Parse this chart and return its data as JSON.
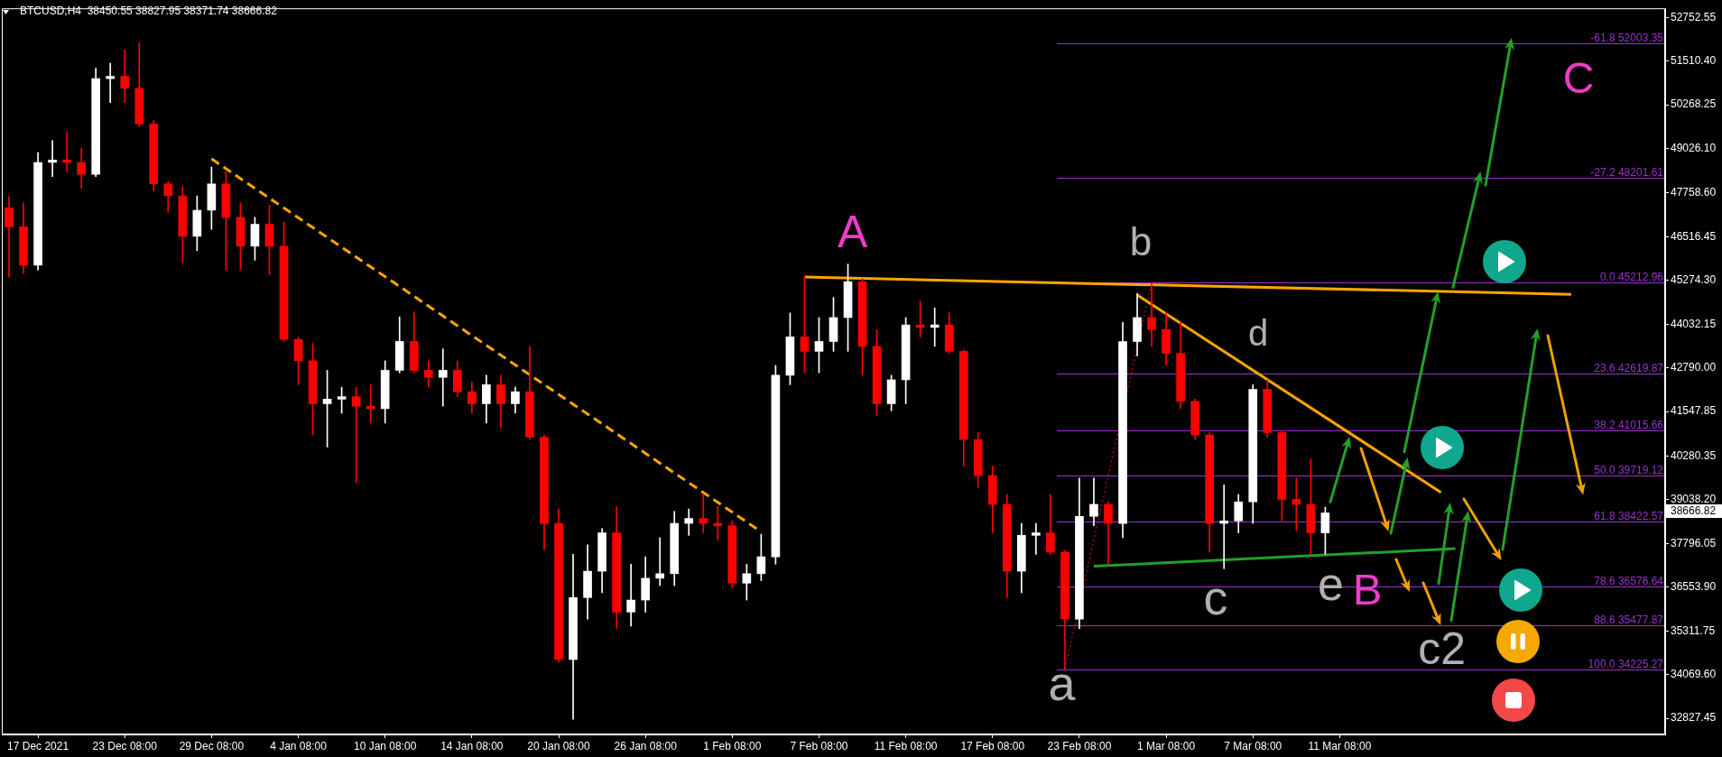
{
  "chart_data": {
    "type": "candlestick",
    "title": "BTCUSD,H4  38450.55 38827.95 38371.74 38666.82",
    "categories": [
      null,
      null,
      "17 Dec 2021",
      null,
      null,
      null,
      null,
      null,
      "23 Dec 08:00",
      null,
      null,
      null,
      null,
      null,
      "29 Dec 08:00",
      null,
      null,
      null,
      null,
      null,
      "4 Jan 08:00",
      null,
      null,
      null,
      null,
      null,
      "10 Jan 08:00",
      null,
      null,
      null,
      null,
      null,
      "14 Jan 08:00",
      null,
      null,
      null,
      null,
      null,
      "20 Jan 08:00",
      null,
      null,
      null,
      null,
      null,
      "26 Jan 08:00",
      null,
      null,
      null,
      null,
      null,
      "1 Feb 08:00",
      null,
      null,
      null,
      null,
      null,
      "7 Feb 08:00",
      null,
      null,
      null,
      null,
      null,
      "11 Feb 08:00",
      null,
      null,
      null,
      null,
      null,
      "17 Feb 08:00",
      null,
      null,
      null,
      null,
      null,
      "23 Feb 08:00",
      null,
      null,
      null,
      null,
      null,
      "1 Mar 08:00",
      null,
      null,
      null,
      null,
      null,
      "7 Mar 08:00",
      null,
      null,
      null,
      null,
      null,
      "11 Mar 08:00",
      null,
      null,
      null,
      null,
      null,
      null,
      null,
      null,
      null,
      null,
      null,
      null,
      null,
      null,
      null,
      null,
      null,
      null,
      null,
      null,
      null,
      null
    ],
    "ohlc": [
      [
        47340,
        47660,
        45370,
        46800
      ],
      [
        46800,
        47480,
        45470,
        45710
      ],
      [
        45710,
        48910,
        45570,
        48630
      ],
      [
        48630,
        49250,
        48230,
        48700
      ],
      [
        48700,
        49490,
        48360,
        48630
      ],
      [
        48630,
        49040,
        47890,
        48290
      ],
      [
        48290,
        51310,
        48230,
        51010
      ],
      [
        51010,
        51450,
        50330,
        51080
      ],
      [
        51080,
        51830,
        50330,
        50740
      ],
      [
        50740,
        52030,
        49650,
        49720
      ],
      [
        49720,
        49820,
        47820,
        48020
      ],
      [
        48020,
        48090,
        47210,
        47680
      ],
      [
        47680,
        47950,
        45780,
        46530
      ],
      [
        46530,
        47680,
        46120,
        47270
      ],
      [
        47270,
        48500,
        46730,
        48020
      ],
      [
        48020,
        48360,
        45570,
        47070
      ],
      [
        47070,
        47480,
        45570,
        46250
      ],
      [
        46250,
        47070,
        45850,
        46870
      ],
      [
        46870,
        47410,
        45440,
        46250
      ],
      [
        46250,
        46930,
        43540,
        43600
      ],
      [
        43600,
        43670,
        42310,
        42990
      ],
      [
        42990,
        43490,
        40880,
        41770
      ],
      [
        41770,
        42720,
        40540,
        41900
      ],
      [
        41900,
        42240,
        41500,
        41970
      ],
      [
        41970,
        42240,
        39520,
        41700
      ],
      [
        41700,
        42310,
        41220,
        41630
      ],
      [
        41630,
        42990,
        41220,
        42720
      ],
      [
        42720,
        44240,
        42650,
        43540
      ],
      [
        43540,
        44380,
        42650,
        42720
      ],
      [
        42720,
        42990,
        42240,
        42520
      ],
      [
        42520,
        43330,
        41700,
        42720
      ],
      [
        42720,
        42990,
        41970,
        42110
      ],
      [
        42110,
        42380,
        41500,
        41770
      ],
      [
        41770,
        42580,
        41220,
        42310
      ],
      [
        42310,
        42580,
        41090,
        41770
      ],
      [
        41770,
        42240,
        41500,
        42110
      ],
      [
        42110,
        43400,
        40750,
        40820
      ],
      [
        40820,
        40890,
        37620,
        38370
      ],
      [
        38370,
        38780,
        34430,
        34500
      ],
      [
        34500,
        37490,
        32800,
        36260
      ],
      [
        36260,
        37760,
        35650,
        37010
      ],
      [
        37010,
        38230,
        36400,
        38100
      ],
      [
        38100,
        38850,
        35380,
        35850
      ],
      [
        35850,
        37210,
        35450,
        36190
      ],
      [
        36190,
        37420,
        35850,
        36810
      ],
      [
        36810,
        37960,
        36600,
        36940
      ],
      [
        36940,
        38710,
        36600,
        38370
      ],
      [
        38370,
        38780,
        38030,
        38510
      ],
      [
        38510,
        39190,
        38100,
        38370
      ],
      [
        38370,
        38850,
        37890,
        38300
      ],
      [
        38300,
        38440,
        36530,
        36670
      ],
      [
        36670,
        37210,
        36190,
        36940
      ],
      [
        36940,
        38060,
        36740,
        37420
      ],
      [
        37420,
        42860,
        37210,
        42580
      ],
      [
        42580,
        44350,
        42310,
        43670
      ],
      [
        43670,
        45400,
        42650,
        43260
      ],
      [
        43260,
        44220,
        42650,
        43540
      ],
      [
        43540,
        44790,
        43260,
        44220
      ],
      [
        44220,
        45740,
        43260,
        45240
      ],
      [
        45240,
        45330,
        42580,
        43400
      ],
      [
        43400,
        43880,
        41430,
        41770
      ],
      [
        41770,
        42580,
        41570,
        42450
      ],
      [
        42450,
        44220,
        41770,
        44010
      ],
      [
        44010,
        44690,
        43670,
        43940
      ],
      [
        43940,
        44490,
        43400,
        44010
      ],
      [
        44010,
        44350,
        43200,
        43260
      ],
      [
        43260,
        43300,
        40000,
        40750
      ],
      [
        40750,
        40950,
        39390,
        39730
      ],
      [
        39730,
        40000,
        38100,
        38910
      ],
      [
        38910,
        39190,
        36260,
        37010
      ],
      [
        37010,
        38370,
        36400,
        38030
      ],
      [
        38030,
        38370,
        37490,
        38100
      ],
      [
        38100,
        39190,
        37490,
        37550
      ],
      [
        37550,
        37600,
        34230,
        35650
      ],
      [
        35650,
        39660,
        35380,
        38570
      ],
      [
        38570,
        39660,
        38300,
        38910
      ],
      [
        38910,
        38980,
        37210,
        38370
      ],
      [
        38370,
        44080,
        37960,
        43540
      ],
      [
        43540,
        44900,
        43130,
        44220
      ],
      [
        44220,
        45210,
        43400,
        43880
      ],
      [
        43880,
        44350,
        42860,
        43200
      ],
      [
        43200,
        44080,
        41630,
        41840
      ],
      [
        41840,
        41900,
        40750,
        40880
      ],
      [
        40880,
        40950,
        37550,
        38370
      ],
      [
        38370,
        39460,
        37080,
        38440
      ],
      [
        38440,
        39190,
        38100,
        38980
      ],
      [
        38980,
        42310,
        38370,
        42180
      ],
      [
        42180,
        42450,
        40820,
        40950
      ],
      [
        40950,
        41000,
        38440,
        39050
      ],
      [
        39050,
        39660,
        38170,
        38910
      ],
      [
        38910,
        40200,
        37490,
        38100
      ],
      [
        38100,
        38830,
        37490,
        38666.82
      ],
      null,
      null,
      null,
      null,
      null,
      null,
      null,
      null,
      null,
      null,
      null,
      null,
      null,
      null,
      null,
      null,
      null,
      null,
      null,
      null,
      null,
      null,
      null
    ],
    "colors": [
      "#ff0000",
      "#ff0000",
      "#ffffff",
      "#ffffff",
      "#ff0000",
      "#ff0000",
      "#ffffff",
      "#ffffff",
      "#ff0000",
      "#ff0000",
      "#ff0000",
      "#ff0000",
      "#ff0000",
      "#ffffff",
      "#ffffff",
      "#ff0000",
      "#ff0000",
      "#ffffff",
      "#ff0000",
      "#ff0000",
      "#ff0000",
      "#ff0000",
      "#ffffff",
      "#ffffff",
      "#ff0000",
      "#ff0000",
      "#ffffff",
      "#ffffff",
      "#ff0000",
      "#ff0000",
      "#ffffff",
      "#ff0000",
      "#ff0000",
      "#ffffff",
      "#ff0000",
      "#ffffff",
      "#ff0000",
      "#ff0000",
      "#ff0000",
      "#ffffff",
      "#ffffff",
      "#ffffff",
      "#ff0000",
      "#ffffff",
      "#ffffff",
      "#ffffff",
      "#ffffff",
      "#ffffff",
      "#ff0000",
      "#ff0000",
      "#ff0000",
      "#ffffff",
      "#ffffff",
      "#ffffff",
      "#ffffff",
      "#ff0000",
      "#ffffff",
      "#ffffff",
      "#ffffff",
      "#ff0000",
      "#ff0000",
      "#ffffff",
      "#ffffff",
      "#ff0000",
      "#ffffff",
      "#ff0000",
      "#ff0000",
      "#ff0000",
      "#ff0000",
      "#ff0000",
      "#ffffff",
      "#ffffff",
      "#ff0000",
      "#ff0000",
      "#ffffff",
      "#ffffff",
      "#ff0000",
      "#ffffff",
      "#ffffff",
      "#ff0000",
      "#ff0000",
      "#ff0000",
      "#ff0000",
      "#ff0000",
      "#ffffff",
      "#ffffff",
      "#ffffff",
      "#ff0000",
      "#ff0000",
      "#ff0000",
      "#ff0000",
      "#ffffff",
      null,
      null,
      null,
      null,
      null,
      null,
      null,
      null,
      null,
      null,
      null,
      null,
      null,
      null,
      null,
      null,
      null,
      null,
      null,
      null,
      null,
      null,
      null
    ],
    "series": [
      {
        "type": "line",
        "color": "#ffa500",
        "line_style": "dashed",
        "values": [
          null,
          null,
          null,
          null,
          null,
          null,
          null,
          null,
          null,
          null,
          null,
          null,
          null,
          null,
          48730,
          null,
          null,
          null,
          null,
          null,
          null,
          null,
          null,
          null,
          null,
          null,
          null,
          null,
          null,
          null,
          null,
          null,
          null,
          null,
          null,
          null,
          null,
          null,
          null,
          null,
          null,
          null,
          null,
          null,
          null,
          null,
          null,
          null,
          null,
          null,
          null,
          null,
          38130,
          null,
          null,
          null,
          null,
          null,
          null,
          null,
          null,
          null,
          null,
          null,
          null,
          null,
          null,
          null,
          null,
          null,
          null,
          null,
          null,
          null,
          null,
          null,
          null,
          null,
          null,
          null,
          null,
          null,
          null,
          null,
          null,
          null,
          null,
          null,
          null,
          null,
          null,
          null,
          null,
          null,
          null,
          null,
          null,
          null,
          null,
          null,
          null,
          null,
          null,
          null,
          null,
          null,
          null,
          null,
          null,
          null,
          null,
          null,
          null,
          null,
          null
        ]
      },
      {
        "type": "line",
        "color": "#ffa500",
        "line_style": "solid",
        "values": [
          null,
          null,
          null,
          null,
          null,
          null,
          null,
          null,
          null,
          null,
          null,
          null,
          null,
          null,
          null,
          null,
          null,
          null,
          null,
          null,
          null,
          null,
          null,
          null,
          null,
          null,
          null,
          null,
          null,
          null,
          null,
          null,
          null,
          null,
          null,
          null,
          null,
          null,
          null,
          null,
          null,
          null,
          null,
          null,
          null,
          null,
          null,
          null,
          null,
          null,
          null,
          null,
          null,
          null,
          null,
          45370,
          null,
          null,
          null,
          null,
          null,
          null,
          null,
          null,
          null,
          null,
          null,
          null,
          null,
          null,
          null,
          null,
          null,
          null,
          null,
          null,
          null,
          null,
          null,
          null,
          null,
          null,
          null,
          null,
          null,
          null,
          null,
          null,
          null,
          null,
          null,
          null,
          null,
          null,
          null,
          null,
          null,
          null,
          null,
          null,
          null,
          null,
          null,
          null,
          null,
          null,
          null,
          null,
          44880,
          null,
          null,
          null,
          null,
          null,
          null
        ]
      },
      {
        "type": "line",
        "color": "#ffa500",
        "line_style": "solid",
        "values": [
          null,
          null,
          null,
          null,
          null,
          null,
          null,
          null,
          null,
          null,
          null,
          null,
          null,
          null,
          null,
          null,
          null,
          null,
          null,
          null,
          null,
          null,
          null,
          null,
          null,
          null,
          null,
          null,
          null,
          null,
          null,
          null,
          null,
          null,
          null,
          null,
          null,
          null,
          null,
          null,
          null,
          null,
          null,
          null,
          null,
          null,
          null,
          null,
          null,
          null,
          null,
          null,
          null,
          null,
          null,
          null,
          null,
          null,
          null,
          null,
          null,
          null,
          null,
          null,
          null,
          null,
          null,
          null,
          null,
          null,
          null,
          null,
          null,
          null,
          null,
          null,
          null,
          null,
          44860,
          null,
          null,
          null,
          null,
          null,
          null,
          null,
          null,
          null,
          null,
          null,
          null,
          null,
          null,
          null,
          null,
          null,
          null,
          null,
          null,
          39250,
          null,
          null,
          null,
          null,
          null,
          null,
          null,
          null,
          null,
          null,
          null,
          null,
          null,
          null,
          null
        ]
      },
      {
        "type": "line",
        "color": "#22a02a",
        "line_style": "solid",
        "values": [
          null,
          null,
          null,
          null,
          null,
          null,
          null,
          null,
          null,
          null,
          null,
          null,
          null,
          null,
          null,
          null,
          null,
          null,
          null,
          null,
          null,
          null,
          null,
          null,
          null,
          null,
          null,
          null,
          null,
          null,
          null,
          null,
          null,
          null,
          null,
          null,
          null,
          null,
          null,
          null,
          null,
          null,
          null,
          null,
          null,
          null,
          null,
          null,
          null,
          null,
          null,
          null,
          null,
          null,
          null,
          null,
          null,
          null,
          null,
          null,
          null,
          null,
          null,
          null,
          null,
          null,
          null,
          null,
          null,
          null,
          null,
          null,
          null,
          null,
          null,
          37150,
          null,
          null,
          null,
          null,
          null,
          null,
          null,
          null,
          null,
          null,
          null,
          null,
          null,
          null,
          null,
          null,
          null,
          null,
          null,
          null,
          null,
          null,
          null,
          null,
          37650,
          null,
          null,
          null,
          null,
          null,
          null,
          null,
          null,
          null,
          null,
          null,
          null,
          null,
          null
        ]
      },
      {
        "type": "line",
        "color": "#ff0000",
        "line_style": "dotted",
        "values": [
          null,
          null,
          null,
          null,
          null,
          null,
          null,
          null,
          null,
          null,
          null,
          null,
          null,
          null,
          null,
          null,
          null,
          null,
          null,
          null,
          null,
          null,
          null,
          null,
          null,
          null,
          null,
          null,
          null,
          null,
          null,
          null,
          null,
          null,
          null,
          null,
          null,
          null,
          null,
          null,
          null,
          null,
          null,
          null,
          null,
          null,
          null,
          null,
          null,
          null,
          null,
          null,
          null,
          null,
          null,
          null,
          null,
          null,
          null,
          null,
          null,
          null,
          null,
          null,
          null,
          null,
          null,
          null,
          null,
          null,
          null,
          null,
          null,
          34230,
          null,
          null,
          null,
          null,
          null,
          45210,
          null,
          null,
          null,
          null,
          null,
          null,
          null,
          null,
          null,
          null,
          null,
          null,
          null,
          null,
          null,
          null,
          null,
          null,
          null,
          null,
          null,
          null,
          null,
          null,
          null,
          null,
          null,
          null,
          null,
          null,
          null,
          null,
          null,
          null,
          null
        ]
      }
    ],
    "ylim": [
      32370,
      53010
    ],
    "yticks": [
      32827.45,
      {
        "value": 34069.6,
        "label": "34069.60"
      },
      35311.75,
      {
        "value": 36553.9,
        "label": "36553.90"
      },
      37796.05,
      {
        "value": 39038.2,
        "label": "39038.20"
      },
      40280.35,
      41547.85,
      {
        "value": 42790,
        "label": "42790.00"
      },
      44032.15,
      {
        "value": 45274.3,
        "label": "45274.30"
      },
      46516.45,
      {
        "value": 47758.6,
        "label": "47758.60"
      },
      {
        "value": 49026.1,
        "label": "49026.10"
      },
      50268.25,
      {
        "value": 51510.4,
        "label": "51510.40"
      },
      52752.55
    ],
    "ref_lines": [
      {
        "axis": "y",
        "value": 52003.35,
        "label": "-61.8 52003.35",
        "color": "#9932cc"
      },
      {
        "axis": "y",
        "value": 48201.61,
        "label": "-27.2 48201.61",
        "color": "#9932cc"
      },
      {
        "axis": "y",
        "value": 45212.96,
        "label": "0.0 45212.96",
        "color": "#9932cc"
      },
      {
        "axis": "y",
        "value": 42619.87,
        "label": "23.6 42619.87",
        "color": "#9932cc"
      },
      {
        "axis": "y",
        "value": 41015.66,
        "label": "38.2 41015.66",
        "color": "#9932cc"
      },
      {
        "axis": "y",
        "value": 39719.12,
        "label": "50.0 39719.12",
        "color": "#9932cc"
      },
      {
        "axis": "y",
        "value": 38422.57,
        "label": "61.8 38422.57",
        "color": "#9932cc"
      },
      {
        "axis": "y",
        "value": 36576.64,
        "label": "78.6 36576.64",
        "color": "#9932cc"
      },
      {
        "axis": "y",
        "value": 35477.87,
        "label": "88.6 35477.87",
        "color": "#9932cc"
      },
      {
        "axis": "y",
        "value": 34225.27,
        "label": "100.0 34225.27",
        "color": "#9932cc"
      }
    ],
    "annotations": [
      "A",
      "a",
      "b",
      "c",
      "d",
      {
        "text": "e",
        "y": 37490
      },
      {
        "text": "B",
        "y": 37490
      },
      "c2",
      "C",
      "38666.82"
    ]
  }
}
